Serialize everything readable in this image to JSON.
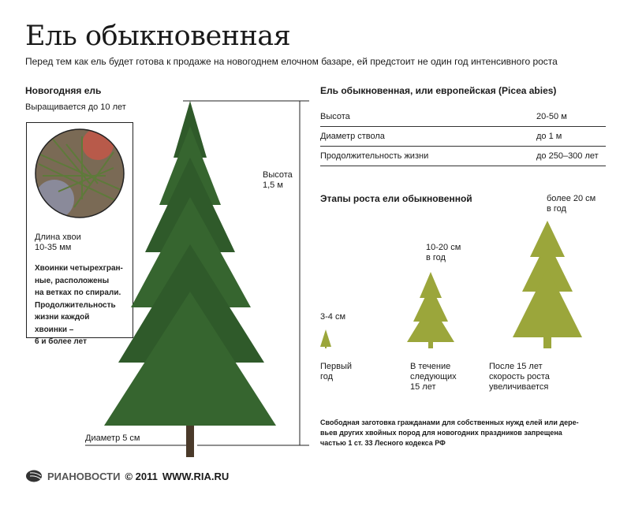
{
  "header": {
    "title": "Ель обыкновенная",
    "subtitle": "Перед тем как ель будет готова к продаже на новогоднем елочном базаре, ей предстоит не один год интенсивного роста"
  },
  "left": {
    "heading": "Новогодняя ель",
    "subheading": "Выращивается до 10 лет",
    "needle": {
      "length_label": "Длина хвои",
      "length_value": "10-35 мм",
      "description": [
        "Хвоинки четырехгран-",
        "ные, расположены",
        "на ветках по спирали.",
        "Продолжительность",
        "жизни каждой",
        "хвоинки –",
        "6 и более лет"
      ]
    }
  },
  "tree": {
    "height_label": "Высота",
    "height_value": "1,5 м",
    "diameter": "Диаметр 5 см",
    "color": "#2f5a2a"
  },
  "species": {
    "heading": "Ель обыкновенная, или европейская (Picea abies)",
    "rows": [
      {
        "label": "Высота",
        "value": "20-50 м"
      },
      {
        "label": "Диаметр ствола",
        "value": "до 1 м"
      },
      {
        "label": "Продолжительность жизни",
        "value": "до 250–300 лет"
      }
    ]
  },
  "growth": {
    "heading": "Этапы роста ели обыкновенной",
    "color": "#9ba63b",
    "stages": [
      {
        "rate": [
          "3-4 см"
        ],
        "period": [
          "Первый",
          "год"
        ]
      },
      {
        "rate": [
          "10-20 см",
          "в год"
        ],
        "period": [
          "В течение",
          "следующих",
          "15 лет"
        ]
      },
      {
        "rate": [
          "более 20 см",
          "в год"
        ],
        "period": [
          "После 15 лет",
          "скорость роста",
          "увеличивается"
        ]
      }
    ]
  },
  "note": [
    "Свободная заготовка гражданами для собственных нужд елей или дере-",
    "вьев других хвойных пород для новогодних праздников запрещена",
    "частью 1 ст. 33 Лесного кодекса РФ"
  ],
  "footer": {
    "brand": "РИАНОВОСТИ",
    "copyright": "© 2011",
    "url": "WWW.RIA.RU"
  }
}
